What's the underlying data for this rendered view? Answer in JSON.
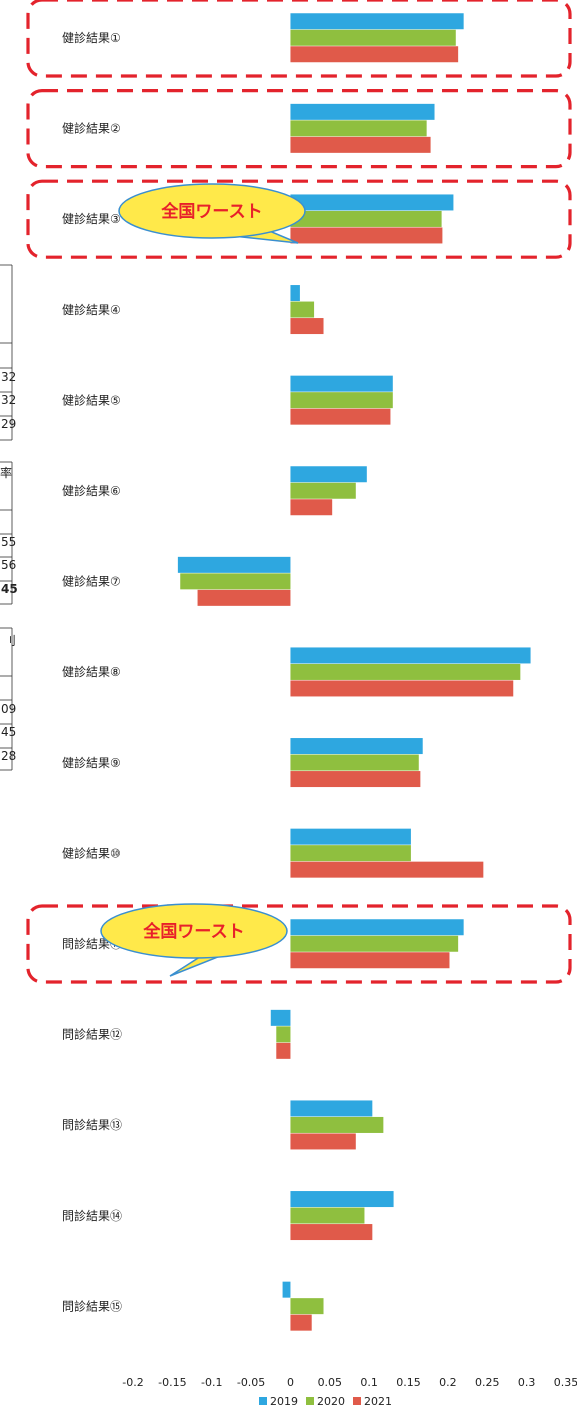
{
  "chart_data": {
    "type": "bar",
    "orientation": "horizontal",
    "categories": [
      "健診結果①",
      "健診結果②",
      "健診結果③",
      "健診結果④",
      "健診結果⑤",
      "健診結果⑥",
      "健診結果⑦",
      "健診結果⑧",
      "健診結果⑨",
      "健診結果⑩",
      "問診結果⑪",
      "問診結果⑫",
      "問診結果⑬",
      "問診結果⑭",
      "問診結果⑮"
    ],
    "series": [
      {
        "name": "2019",
        "color": "#2ea7e0",
        "values": [
          0.22,
          0.183,
          0.207,
          0.012,
          0.13,
          0.097,
          -0.143,
          0.305,
          0.168,
          0.153,
          0.22,
          -0.025,
          0.104,
          0.131,
          -0.01
        ]
      },
      {
        "name": "2020",
        "color": "#8fbf3f",
        "values": [
          0.21,
          0.173,
          0.192,
          0.03,
          0.13,
          0.083,
          -0.14,
          0.292,
          0.163,
          0.153,
          0.213,
          -0.018,
          0.118,
          0.094,
          0.042
        ]
      },
      {
        "name": "2021",
        "color": "#e05a4a",
        "values": [
          0.213,
          0.178,
          0.193,
          0.042,
          0.127,
          0.053,
          -0.118,
          0.283,
          0.165,
          0.245,
          0.202,
          -0.018,
          0.083,
          0.104,
          0.027
        ]
      }
    ],
    "xlim": [
      -0.2,
      0.35
    ],
    "x_ticks": [
      "-0.2",
      "-0.15",
      "-0.1",
      "-0.05",
      "0",
      "0.05",
      "0.1",
      "0.15",
      "0.2",
      "0.25",
      "0.3",
      "0.35"
    ],
    "legend_position": "bottom",
    "grid": false,
    "title": "",
    "xlabel": "",
    "ylabel": ""
  },
  "annotations": {
    "callout_1": "全国ワースト",
    "callout_2": "全国ワースト",
    "highlighted_categories": [
      "健診結果①",
      "健診結果②",
      "健診結果③",
      "問診結果⑪"
    ]
  },
  "left_table_fragments": [
    "32",
    "32",
    "29",
    "率",
    "55",
    "56",
    "45",
    "刂",
    "09",
    "45",
    "28"
  ]
}
